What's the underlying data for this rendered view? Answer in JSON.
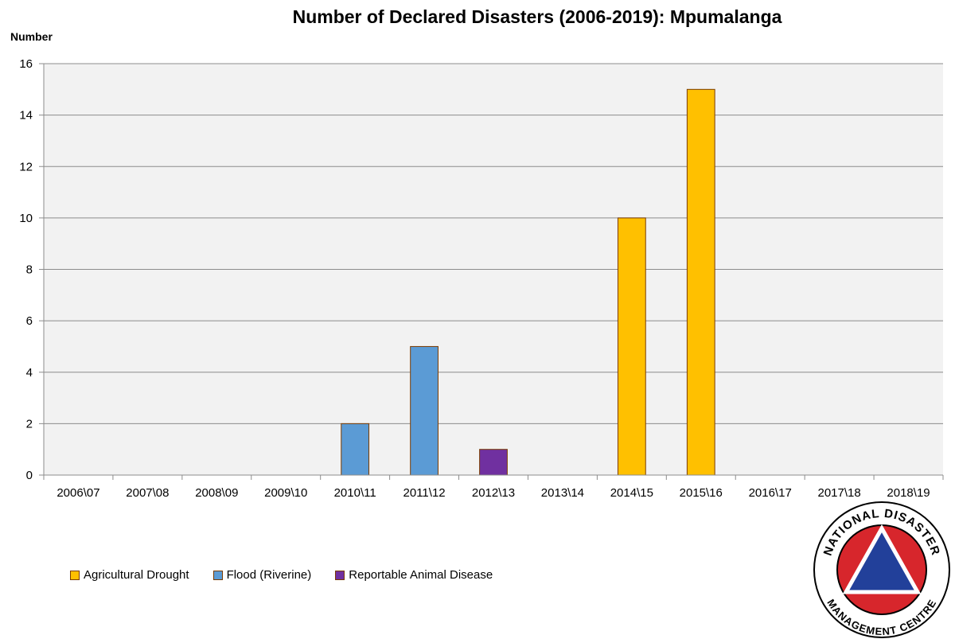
{
  "chart_data": {
    "type": "bar",
    "title": "Number of Declared Disasters (2006-2019): Mpumalanga",
    "ylabel": "Number",
    "xlabel": "",
    "ylim": [
      0,
      16
    ],
    "yticks": [
      0,
      2,
      4,
      6,
      8,
      10,
      12,
      14,
      16
    ],
    "grid": true,
    "legend_position": "bottom-left",
    "categories": [
      "2006\\07",
      "2007\\08",
      "2008\\09",
      "2009\\10",
      "2010\\11",
      "2011\\12",
      "2012\\13",
      "2013\\14",
      "2014\\15",
      "2015\\16",
      "2016\\17",
      "2017\\18",
      "2018\\19"
    ],
    "series": [
      {
        "name": "Agricultural Drought",
        "color": "#FFC000",
        "values": [
          0,
          0,
          0,
          0,
          0,
          0,
          0,
          0,
          10,
          15,
          0,
          0,
          0
        ]
      },
      {
        "name": "Flood (Riverine)",
        "color": "#5B9BD5",
        "values": [
          0,
          0,
          0,
          0,
          2,
          5,
          0,
          0,
          0,
          0,
          0,
          0,
          0
        ]
      },
      {
        "name": "Reportable Animal Disease",
        "color": "#7030A0",
        "values": [
          0,
          0,
          0,
          0,
          0,
          0,
          1,
          0,
          0,
          0,
          0,
          0,
          0
        ]
      }
    ]
  },
  "logo": {
    "top_text": "NATIONAL DISASTER",
    "bottom_text": "MANAGEMENT CENTRE",
    "colors": {
      "ring": "#D7262C",
      "triangle": "#22409A"
    }
  }
}
